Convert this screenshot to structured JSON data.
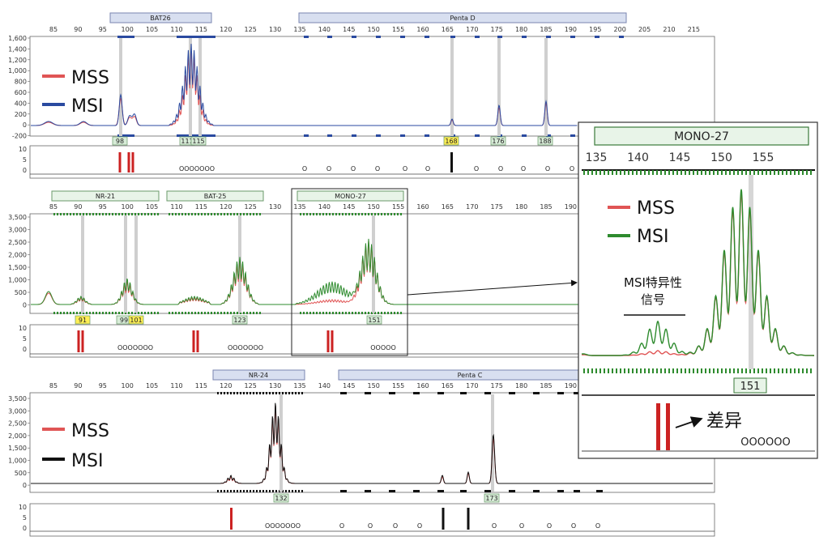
{
  "colors": {
    "mss": "#e05555",
    "msi_blue": "#2a4aa0",
    "msi_green": "#2e8b2e",
    "msi_black": "#111111",
    "marker_bar": "#cc2222",
    "label_fill_green": "#d8ecd8",
    "label_fill_yellow": "#ffee55",
    "header_fill": "#d8dff0"
  },
  "chart_data": [
    {
      "type": "line",
      "panel": "top",
      "loci": [
        "BAT26",
        "Penta D"
      ],
      "x_ticks": [
        85,
        90,
        95,
        100,
        105,
        110,
        115,
        120,
        125,
        130,
        135,
        140,
        145,
        150,
        155,
        160,
        165,
        170,
        175,
        180,
        185,
        190,
        195,
        200,
        205,
        210,
        215
      ],
      "y_ticks": [
        "1,600",
        "1,400",
        "1,200",
        "1,000",
        "800",
        "600",
        "400",
        "200",
        "0",
        "-200"
      ],
      "ylim": [
        -200,
        1600
      ],
      "legend": [
        "MSS",
        "MSI"
      ],
      "peak_labels": [
        "98",
        "111",
        "115",
        "168",
        "176",
        "188"
      ],
      "sub_y_ticks": [
        "10",
        "5",
        "0"
      ],
      "dots": [
        "OOOOOOO",
        "O",
        "O",
        "O",
        "O",
        "O",
        "O",
        "O",
        "O",
        "O",
        "O",
        "O"
      ]
    },
    {
      "type": "line",
      "panel": "middle",
      "loci": [
        "NR-21",
        "BAT-25",
        "MONO-27"
      ],
      "x_ticks": [
        85,
        90,
        95,
        100,
        105,
        110,
        115,
        120,
        125,
        130,
        135,
        140,
        145,
        150,
        155,
        160,
        165,
        170,
        175,
        180,
        185,
        190
      ],
      "y_ticks": [
        "3,500",
        "3,000",
        "2,500",
        "2,000",
        "1,500",
        "1,000",
        "500",
        "0"
      ],
      "ylim": [
        0,
        3500
      ],
      "peak_labels": [
        "91",
        "99",
        "101",
        "123",
        "151"
      ],
      "sub_y_ticks": [
        "10",
        "5",
        "0"
      ],
      "dots": [
        "OOOOOOO",
        "OOOOOOO",
        "OOOOO"
      ]
    },
    {
      "type": "line",
      "panel": "bottom",
      "loci": [
        "NR-24",
        "Penta C"
      ],
      "x_ticks": [
        85,
        90,
        95,
        100,
        105,
        110,
        115,
        120,
        125,
        130,
        135,
        140,
        145,
        150,
        155,
        160,
        165,
        170,
        175,
        180,
        185,
        190
      ],
      "y_ticks": [
        "3,500",
        "3,000",
        "2,500",
        "2,000",
        "1,500",
        "1,000",
        "500",
        "0"
      ],
      "ylim": [
        0,
        3500
      ],
      "legend": [
        "MSS",
        "MSI"
      ],
      "peak_labels": [
        "132",
        "173"
      ],
      "sub_y_ticks": [
        "10",
        "5",
        "0"
      ],
      "dots": [
        "OOOOOOO",
        "O",
        "O",
        "O",
        "O",
        "O",
        "O",
        "O",
        "O",
        "O",
        "O"
      ]
    },
    {
      "type": "line",
      "panel": "inset",
      "loci": [
        "MONO-27"
      ],
      "x_ticks": [
        135,
        140,
        145,
        150,
        155
      ],
      "legend": [
        "MSS",
        "MSI"
      ],
      "annotation": "MSI特异性信号",
      "annotation_line1": "MSI特异性",
      "annotation_line2": "信号",
      "peak_labels": [
        "151"
      ],
      "diff_label": "差异",
      "dots": "OOOOOO"
    }
  ]
}
